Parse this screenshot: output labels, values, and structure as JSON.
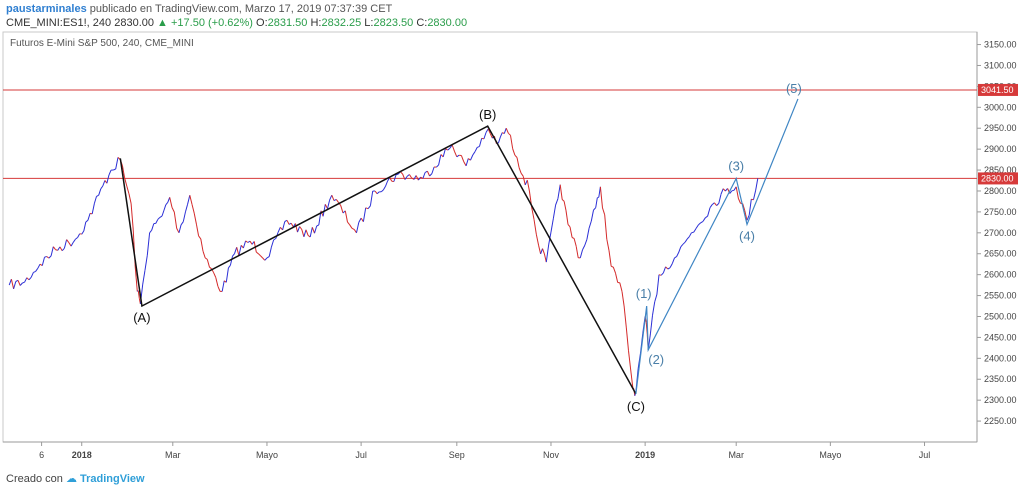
{
  "header": {
    "author": "paustarminales",
    "published": "publicado en TradingView.com, Marzo 17, 2019 07:37:39 CET",
    "symbol": "CME_MINI:ES1!, 240",
    "last": "2830.00",
    "change_arrow": "▲",
    "change": "+17.50 (+0.62%)",
    "o_label": "O:",
    "o_value": "2831.50",
    "h_label": "H:",
    "h_value": "2832.25",
    "l_label": "L:",
    "l_value": "2823.50",
    "c_label": "C:",
    "c_value": "2830.00"
  },
  "footer": {
    "created_with": "Creado con",
    "brand": "TradingView"
  },
  "colors": {
    "up": "#2b2fd6",
    "down": "#d42a2a",
    "level_line": "#d63a3a",
    "wave_abc": "#111111",
    "wave_impulse": "#3f86c4",
    "annotation_blue": "#4a7fa8"
  },
  "chart_data": {
    "type": "line",
    "title": "Futuros E-Mini S&P 500, 240, CME_MINI",
    "xlabel": "",
    "ylabel": "",
    "ylim": [
      2200,
      3180
    ],
    "y_ticks": [
      "3150.00",
      "3100.00",
      "3050.00",
      "3000.00",
      "2950.00",
      "2900.00",
      "2850.00",
      "2800.00",
      "2750.00",
      "2700.00",
      "2650.00",
      "2600.00",
      "2550.00",
      "2500.00",
      "2450.00",
      "2400.00",
      "2350.00",
      "2300.00",
      "2250.00"
    ],
    "x_ticks": [
      "6",
      "2018",
      "Mar",
      "Mayo",
      "Jul",
      "Sep",
      "Nov",
      "2019",
      "Mar",
      "Mayo",
      "Jul"
    ],
    "series": [
      {
        "values": [
          [
            "2017-11-15",
            2575
          ],
          [
            "2017-11-25",
            2582
          ],
          [
            "2017-12-05",
            2625
          ],
          [
            "2017-12-15",
            2660
          ],
          [
            "2017-12-28",
            2685
          ],
          [
            "2018-01-05",
            2730
          ],
          [
            "2018-01-12",
            2790
          ],
          [
            "2018-01-20",
            2850
          ],
          [
            "2018-01-26",
            2875
          ],
          [
            "2018-02-02",
            2770
          ],
          [
            "2018-02-06",
            2560
          ],
          [
            "2018-02-08",
            2530
          ],
          [
            "2018-02-14",
            2700
          ],
          [
            "2018-02-22",
            2740
          ],
          [
            "2018-02-27",
            2785
          ],
          [
            "2018-03-05",
            2700
          ],
          [
            "2018-03-12",
            2790
          ],
          [
            "2018-03-22",
            2640
          ],
          [
            "2018-04-02",
            2560
          ],
          [
            "2018-04-10",
            2650
          ],
          [
            "2018-04-20",
            2680
          ],
          [
            "2018-05-01",
            2640
          ],
          [
            "2018-05-14",
            2730
          ],
          [
            "2018-05-29",
            2690
          ],
          [
            "2018-06-12",
            2790
          ],
          [
            "2018-06-28",
            2700
          ],
          [
            "2018-07-10",
            2800
          ],
          [
            "2018-07-25",
            2840
          ],
          [
            "2018-08-10",
            2830
          ],
          [
            "2018-08-29",
            2910
          ],
          [
            "2018-09-07",
            2860
          ],
          [
            "2018-09-20",
            2940
          ],
          [
            "2018-09-28",
            2915
          ],
          [
            "2018-10-03",
            2950
          ],
          [
            "2018-10-10",
            2880
          ],
          [
            "2018-10-18",
            2800
          ],
          [
            "2018-10-24",
            2670
          ],
          [
            "2018-10-29",
            2630
          ],
          [
            "2018-11-07",
            2815
          ],
          [
            "2018-11-12",
            2720
          ],
          [
            "2018-11-20",
            2640
          ],
          [
            "2018-11-30",
            2760
          ],
          [
            "2018-12-03",
            2810
          ],
          [
            "2018-12-10",
            2620
          ],
          [
            "2018-12-17",
            2560
          ],
          [
            "2018-12-24",
            2330
          ],
          [
            "2018-12-26",
            2320
          ],
          [
            "2019-01-01",
            2500
          ],
          [
            "2019-01-03",
            2420
          ],
          [
            "2019-01-10",
            2600
          ],
          [
            "2019-01-20",
            2640
          ],
          [
            "2019-01-31",
            2700
          ],
          [
            "2019-02-12",
            2760
          ],
          [
            "2019-02-22",
            2800
          ],
          [
            "2019-03-01",
            2810
          ],
          [
            "2019-03-08",
            2730
          ],
          [
            "2019-03-15",
            2830
          ]
        ]
      }
    ],
    "horizontal_lines": [
      {
        "value": 3041.5,
        "label": "3041.50"
      },
      {
        "value": 2830.0,
        "label": "2830.00"
      }
    ],
    "wave_abc": [
      [
        "2018-01-26",
        2878,
        "(A)"
      ],
      [
        "2018-02-09",
        2525,
        "(A)"
      ],
      [
        "2018-09-21",
        2955,
        "(B)"
      ],
      [
        "2018-12-26",
        2315,
        "(C)"
      ]
    ],
    "wave_impulse": [
      [
        "2018-12-26",
        2315,
        "(C)"
      ],
      [
        "2019-01-02",
        2525,
        "(1)"
      ],
      [
        "2019-01-03",
        2420,
        "(2)"
      ],
      [
        "2019-03-01",
        2830,
        "(3)"
      ],
      [
        "2019-03-08",
        2720,
        "(4)"
      ],
      [
        "2019-04-10",
        3020,
        "(5)"
      ]
    ],
    "annotations": [
      "(A)",
      "(B)",
      "(C)",
      "(1)",
      "(2)",
      "(3)",
      "(4)",
      "(5)"
    ]
  }
}
